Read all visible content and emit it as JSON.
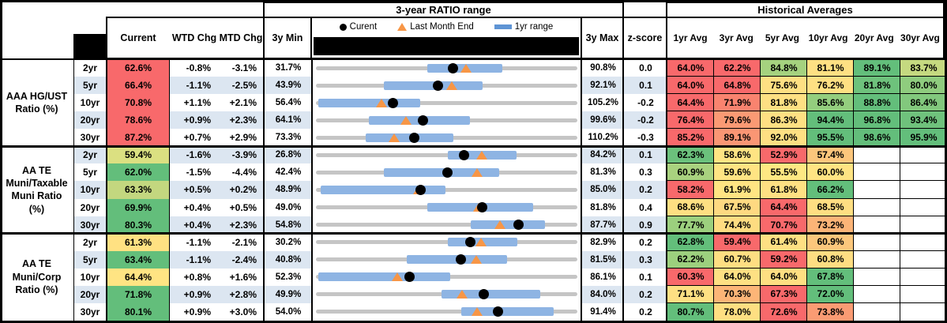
{
  "table": {
    "headers": {
      "ratio_range_title": "3-year RATIO range",
      "historical_title": "Historical Averages",
      "current": "Current",
      "wtd": "WTD Chg",
      "mtd": "MTD Chg",
      "min3y": "3y Min",
      "max3y": "3y Max",
      "zscore": "z-score",
      "avg_cols": [
        "1yr Avg",
        "3yr Avg",
        "5yr Avg",
        "10yr Avg",
        "20yr Avg",
        "30yr Avg"
      ]
    },
    "legend": {
      "current": "Curent",
      "last_month_end": "Last Month End",
      "range_1yr": "1yr range"
    },
    "colors": {
      "red": "#F8696B",
      "yellow": "#FEE083",
      "green": "#63BE7B",
      "bar_blue": "#8EB4E3",
      "swatch_blue": "#5E94D4",
      "track_gray": "#C5C5C5",
      "triangle_orange": "#F79646",
      "stripe_blue": "#DCE6F1"
    }
  },
  "chart_data": {
    "type": "table",
    "title": "Municipal ratio ranges: current vs 3-year range and historical averages",
    "row_chart": {
      "type": "range",
      "note": "Each row: gray track spans 3y Min to 3y Max; blue bar is 1yr range; black dot is Current; orange triangle is Last Month End",
      "legend": [
        "Curent",
        "Last Month End",
        "1yr range"
      ]
    },
    "groups": [
      {
        "label": "AAA HG/UST\nRatio (%)",
        "rows": [
          {
            "tenor": "2yr",
            "current": "62.6%",
            "current_bg": "#F8696B",
            "wtd": "-0.8%",
            "mtd": "-3.1%",
            "min": 31.7,
            "max": 90.8,
            "z": "0.0",
            "chart": {
              "cur": 62.6,
              "lme": 65.7,
              "bar": [
                56.8,
                73.8
              ]
            },
            "avgs": [
              {
                "v": "64.0%",
                "bg": "#F8696B"
              },
              {
                "v": "62.2%",
                "bg": "#F8696B"
              },
              {
                "v": "84.8%",
                "bg": "#A5D27F"
              },
              {
                "v": "81.1%",
                "bg": "#FEE083"
              },
              {
                "v": "89.1%",
                "bg": "#63BE7B"
              },
              {
                "v": "83.7%",
                "bg": "#C5D980"
              }
            ]
          },
          {
            "tenor": "5yr",
            "current": "66.4%",
            "current_bg": "#F8696B",
            "wtd": "-1.1%",
            "mtd": "-2.5%",
            "min": 43.9,
            "max": 92.1,
            "z": "0.1",
            "chart": {
              "cur": 66.4,
              "lme": 68.9,
              "bar": [
                56.4,
                74.7
              ]
            },
            "avgs": [
              {
                "v": "64.0%",
                "bg": "#F8696B"
              },
              {
                "v": "64.8%",
                "bg": "#F8696B"
              },
              {
                "v": "75.6%",
                "bg": "#FEE083"
              },
              {
                "v": "76.2%",
                "bg": "#FEE083"
              },
              {
                "v": "81.8%",
                "bg": "#6EC27C"
              },
              {
                "v": "80.0%",
                "bg": "#8FCC7E"
              }
            ]
          },
          {
            "tenor": "10yr",
            "current": "70.8%",
            "current_bg": "#F8696B",
            "wtd": "+1.1%",
            "mtd": "+2.1%",
            "min": 56.4,
            "max": 105.2,
            "z": "-0.2",
            "chart": {
              "cur": 70.8,
              "lme": 68.7,
              "bar": [
                56.8,
                75.8
              ]
            },
            "avgs": [
              {
                "v": "64.4%",
                "bg": "#F8696B"
              },
              {
                "v": "71.9%",
                "bg": "#F9836F"
              },
              {
                "v": "81.8%",
                "bg": "#FEE083"
              },
              {
                "v": "85.6%",
                "bg": "#94CE7E"
              },
              {
                "v": "88.8%",
                "bg": "#63BE7B"
              },
              {
                "v": "86.4%",
                "bg": "#82C87D"
              }
            ]
          },
          {
            "tenor": "20yr",
            "current": "78.6%",
            "current_bg": "#F8696B",
            "wtd": "+0.9%",
            "mtd": "+2.3%",
            "min": 64.1,
            "max": 99.6,
            "z": "-0.2",
            "chart": {
              "cur": 78.6,
              "lme": 76.3,
              "bar": [
                71.3,
                85.0
              ]
            },
            "avgs": [
              {
                "v": "76.4%",
                "bg": "#F8696B"
              },
              {
                "v": "79.6%",
                "bg": "#FA9A74"
              },
              {
                "v": "86.3%",
                "bg": "#FEE083"
              },
              {
                "v": "94.4%",
                "bg": "#63BE7B"
              },
              {
                "v": "96.8%",
                "bg": "#63BE7B"
              },
              {
                "v": "93.4%",
                "bg": "#6FC27C"
              }
            ]
          },
          {
            "tenor": "30yr",
            "current": "87.2%",
            "current_bg": "#F8696B",
            "wtd": "+0.7%",
            "mtd": "+2.9%",
            "min": 73.3,
            "max": 110.2,
            "z": "-0.3",
            "chart": {
              "cur": 87.2,
              "lme": 84.3,
              "bar": [
                80.3,
                92.7
              ]
            },
            "avgs": [
              {
                "v": "85.2%",
                "bg": "#F8696B"
              },
              {
                "v": "89.1%",
                "bg": "#FA9674"
              },
              {
                "v": "92.0%",
                "bg": "#FEE083"
              },
              {
                "v": "95.5%",
                "bg": "#63BE7B"
              },
              {
                "v": "98.6%",
                "bg": "#63BE7B"
              },
              {
                "v": "95.9%",
                "bg": "#63BE7B"
              }
            ]
          }
        ]
      },
      {
        "label": "AA TE\nMuni/Taxable\nMuni Ratio\n(%)",
        "rows": [
          {
            "tenor": "2yr",
            "current": "59.4%",
            "current_bg": "#DBE081",
            "wtd": "-1.6%",
            "mtd": "-3.9%",
            "min": 26.8,
            "max": 84.2,
            "z": "0.1",
            "chart": {
              "cur": 59.4,
              "lme": 63.3,
              "bar": [
                55.8,
                70.8
              ]
            },
            "avgs": [
              {
                "v": "62.3%",
                "bg": "#6BC17C"
              },
              {
                "v": "58.6%",
                "bg": "#FFE483"
              },
              {
                "v": "52.9%",
                "bg": "#F8696B"
              },
              {
                "v": "57.4%",
                "bg": "#FCC67C"
              },
              null,
              null
            ]
          },
          {
            "tenor": "5yr",
            "current": "62.0%",
            "current_bg": "#63BE7B",
            "wtd": "-1.5%",
            "mtd": "-4.4%",
            "min": 42.4,
            "max": 81.3,
            "z": "0.3",
            "chart": {
              "cur": 62.0,
              "lme": 66.4,
              "bar": [
                52.5,
                69.7
              ]
            },
            "avgs": [
              {
                "v": "60.9%",
                "bg": "#A9D27F"
              },
              {
                "v": "59.6%",
                "bg": "#FFE483"
              },
              {
                "v": "55.5%",
                "bg": "#FEE883"
              },
              {
                "v": "60.0%",
                "bg": "#FFE483"
              },
              null,
              null
            ]
          },
          {
            "tenor": "10yr",
            "current": "63.3%",
            "current_bg": "#C3D77F",
            "wtd": "+0.5%",
            "mtd": "+0.2%",
            "min": 48.9,
            "max": 85.0,
            "z": "0.2",
            "chart": {
              "cur": 63.3,
              "lme": 63.1,
              "bar": [
                49.6,
                66.8
              ]
            },
            "avgs": [
              {
                "v": "58.2%",
                "bg": "#F8696B"
              },
              {
                "v": "61.9%",
                "bg": "#FFE483"
              },
              {
                "v": "61.8%",
                "bg": "#FEE083"
              },
              {
                "v": "66.2%",
                "bg": "#63BE7B"
              },
              null,
              null
            ]
          },
          {
            "tenor": "20yr",
            "current": "69.9%",
            "current_bg": "#63BE7B",
            "wtd": "+0.4%",
            "mtd": "+0.5%",
            "min": 49.0,
            "max": 81.8,
            "z": "0.4",
            "chart": {
              "cur": 69.9,
              "lme": 69.4,
              "bar": [
                63.0,
                76.3
              ]
            },
            "avgs": [
              {
                "v": "68.6%",
                "bg": "#FEDF82"
              },
              {
                "v": "67.5%",
                "bg": "#FED981"
              },
              {
                "v": "64.4%",
                "bg": "#F8696B"
              },
              {
                "v": "68.5%",
                "bg": "#FEDE82"
              },
              null,
              null
            ]
          },
          {
            "tenor": "30yr",
            "current": "80.3%",
            "current_bg": "#63BE7B",
            "wtd": "+0.4%",
            "mtd": "+2.3%",
            "min": 54.8,
            "max": 87.7,
            "z": "0.9",
            "chart": {
              "cur": 80.3,
              "lme": 78.0,
              "bar": [
                74.3,
                83.6
              ]
            },
            "avgs": [
              {
                "v": "77.7%",
                "bg": "#9CD07E"
              },
              {
                "v": "74.4%",
                "bg": "#FEDC81"
              },
              {
                "v": "70.7%",
                "bg": "#F8696B"
              },
              {
                "v": "73.2%",
                "bg": "#FCB477"
              },
              null,
              null
            ]
          }
        ]
      },
      {
        "label": "AA TE\nMuni/Corp\nRatio (%)",
        "rows": [
          {
            "tenor": "2yr",
            "current": "61.3%",
            "current_bg": "#FFE182",
            "wtd": "-1.1%",
            "mtd": "-2.1%",
            "min": 30.2,
            "max": 82.9,
            "z": "0.2",
            "chart": {
              "cur": 61.3,
              "lme": 63.4,
              "bar": [
                56.8,
                70.8
              ]
            },
            "avgs": [
              {
                "v": "62.8%",
                "bg": "#63BE7B"
              },
              {
                "v": "59.4%",
                "bg": "#F8696B"
              },
              {
                "v": "61.4%",
                "bg": "#FEE083"
              },
              {
                "v": "60.9%",
                "bg": "#FCC77C"
              },
              null,
              null
            ]
          },
          {
            "tenor": "5yr",
            "current": "63.4%",
            "current_bg": "#63BE7B",
            "wtd": "-1.1%",
            "mtd": "-2.4%",
            "min": 40.8,
            "max": 81.5,
            "z": "0.3",
            "chart": {
              "cur": 63.4,
              "lme": 65.8,
              "bar": [
                54.9,
                70.6
              ]
            },
            "avgs": [
              {
                "v": "62.2%",
                "bg": "#9CD07E"
              },
              {
                "v": "60.7%",
                "bg": "#FEDE82"
              },
              {
                "v": "59.2%",
                "bg": "#F8696B"
              },
              {
                "v": "60.8%",
                "bg": "#FEDD82"
              },
              null,
              null
            ]
          },
          {
            "tenor": "10yr",
            "current": "64.4%",
            "current_bg": "#FFE483",
            "wtd": "+0.8%",
            "mtd": "+1.6%",
            "min": 52.3,
            "max": 86.1,
            "z": "0.1",
            "chart": {
              "cur": 64.4,
              "lme": 62.8,
              "bar": [
                52.6,
                69.7
              ]
            },
            "avgs": [
              {
                "v": "60.3%",
                "bg": "#F8696B"
              },
              {
                "v": "64.0%",
                "bg": "#FEE083"
              },
              {
                "v": "64.0%",
                "bg": "#FEDF82"
              },
              {
                "v": "67.8%",
                "bg": "#63BE7B"
              },
              null,
              null
            ]
          },
          {
            "tenor": "20yr",
            "current": "71.8%",
            "current_bg": "#63BE7B",
            "wtd": "+0.9%",
            "mtd": "+2.8%",
            "min": 49.9,
            "max": 84.0,
            "z": "0.2",
            "chart": {
              "cur": 71.8,
              "lme": 69.0,
              "bar": [
                66.3,
                79.2
              ]
            },
            "avgs": [
              {
                "v": "71.1%",
                "bg": "#FEE083"
              },
              {
                "v": "70.3%",
                "bg": "#FCB577"
              },
              {
                "v": "67.3%",
                "bg": "#F8696B"
              },
              {
                "v": "72.0%",
                "bg": "#63BE7B"
              },
              null,
              null
            ]
          },
          {
            "tenor": "30yr",
            "current": "80.1%",
            "current_bg": "#63BE7B",
            "wtd": "+0.9%",
            "mtd": "+3.0%",
            "min": 54.0,
            "max": 91.4,
            "z": "0.2",
            "chart": {
              "cur": 80.1,
              "lme": 77.1,
              "bar": [
                74.8,
                88.0
              ]
            },
            "avgs": [
              {
                "v": "80.7%",
                "bg": "#63BE7B"
              },
              {
                "v": "78.0%",
                "bg": "#FEDF82"
              },
              {
                "v": "72.6%",
                "bg": "#F8696B"
              },
              {
                "v": "73.8%",
                "bg": "#FA9B73"
              },
              null,
              null
            ]
          }
        ]
      }
    ]
  }
}
